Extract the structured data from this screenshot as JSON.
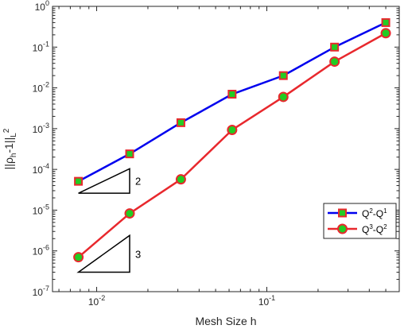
{
  "chart_data": {
    "type": "line",
    "xlabel": "Mesh Size h",
    "ylabel_parts": {
      "pre": "||ρ",
      "sub1": "h",
      "mid": "-1||",
      "sub2": "L",
      "sup": "2"
    },
    "xscale": "log",
    "yscale": "log",
    "xlim": [
      0.0055,
      0.6
    ],
    "ylim": [
      1e-07,
      1
    ],
    "x_ticks": [
      {
        "value": 0.01,
        "base": "10",
        "exp": "-2"
      },
      {
        "value": 0.1,
        "base": "10",
        "exp": "-1"
      }
    ],
    "y_ticks": [
      {
        "value": 1e-07,
        "base": "10",
        "exp": "-7"
      },
      {
        "value": 1e-06,
        "base": "10",
        "exp": "-6"
      },
      {
        "value": 1e-05,
        "base": "10",
        "exp": "-5"
      },
      {
        "value": 0.0001,
        "base": "10",
        "exp": "-4"
      },
      {
        "value": 0.001,
        "base": "10",
        "exp": "-3"
      },
      {
        "value": 0.01,
        "base": "10",
        "exp": "-2"
      },
      {
        "value": 0.1,
        "base": "10",
        "exp": "-1"
      },
      {
        "value": 1,
        "base": "10",
        "exp": "0"
      }
    ],
    "grid": false,
    "legend_position": "lower-right",
    "series": [
      {
        "name_parts": {
          "a": "Q",
          "a_sup": "2",
          "sep": "-Q",
          "b_sup": "1"
        },
        "color": "#0000ee",
        "marker": "square",
        "marker_edge": "#e8282d",
        "marker_face": "#22cc22",
        "x": [
          0.0078125,
          0.015625,
          0.03125,
          0.0625,
          0.125,
          0.25,
          0.5
        ],
        "y": [
          5.1e-05,
          0.00024,
          0.0014,
          0.007,
          0.02,
          0.1,
          0.4
        ]
      },
      {
        "name_parts": {
          "a": "Q",
          "a_sup": "3",
          "sep": "-Q",
          "b_sup": "2"
        },
        "color": "#e8282d",
        "marker": "circle",
        "marker_edge": "#e8282d",
        "marker_face": "#22cc22",
        "x": [
          0.0078125,
          0.015625,
          0.03125,
          0.0625,
          0.125,
          0.25,
          0.5
        ],
        "y": [
          7e-07,
          8.3e-06,
          5.7e-05,
          0.00093,
          0.006,
          0.044,
          0.22
        ]
      }
    ],
    "slope_triangles": [
      {
        "label": "2",
        "x0": 0.0078125,
        "x1": 0.015625,
        "y0": 2.6e-05,
        "y1": 0.000104
      },
      {
        "label": "3",
        "x0": 0.0078125,
        "x1": 0.015625,
        "y0": 3e-07,
        "y1": 2.4e-06
      }
    ]
  }
}
